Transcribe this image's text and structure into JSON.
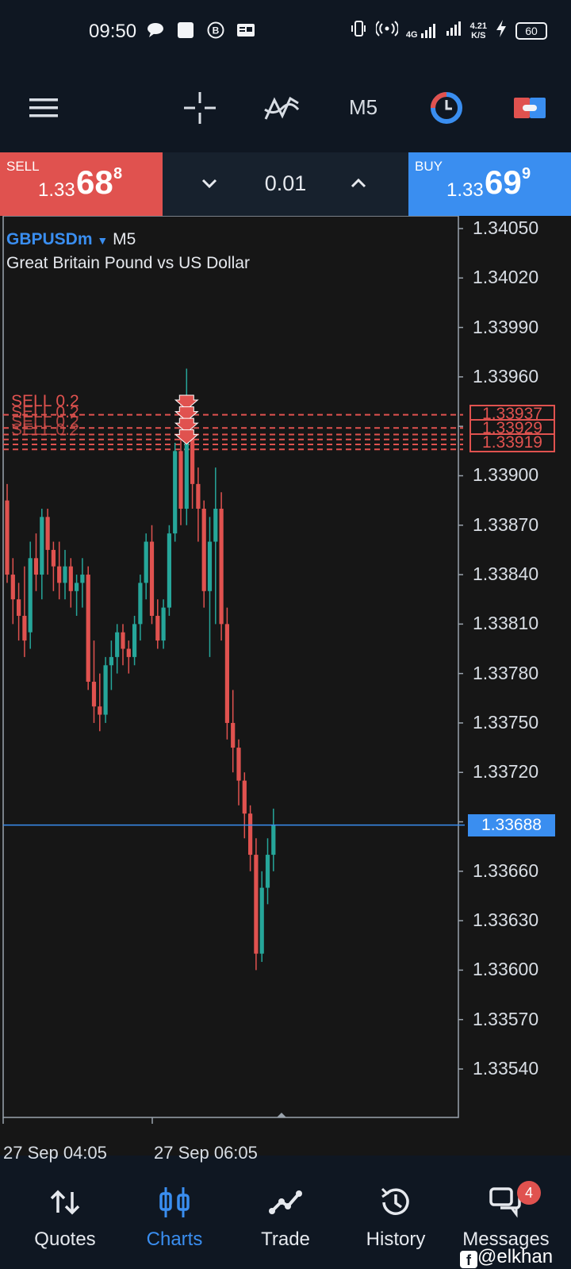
{
  "status_bar": {
    "time": "09:50",
    "net_type": "4G",
    "speed": "4.21",
    "speed_unit": "K/S",
    "battery": "60"
  },
  "toolbar": {
    "timeframe": "M5",
    "icons": [
      "menu-icon",
      "crosshair-icon",
      "indicators-icon",
      "timeframe-button",
      "clock-icon",
      "trade-toggle-icon"
    ]
  },
  "trade": {
    "sell_label": "SELL",
    "sell_price_small": "1.33",
    "sell_price_big": "68",
    "sell_price_sup": "8",
    "buy_label": "BUY",
    "buy_price_small": "1.33",
    "buy_price_big": "69",
    "buy_price_sup": "9",
    "volume": "0.01"
  },
  "chart": {
    "symbol": "GBPUSDm",
    "timeframe": "M5",
    "description": "Great Britain Pound vs US Dollar",
    "current_price": "1.33688",
    "position_prices": [
      "1.33937",
      "1.33929",
      "1.33919"
    ],
    "position_label": "SELL 0.2",
    "time_labels": [
      "27 Sep 04:05",
      "27 Sep 06:05"
    ],
    "colors": {
      "up": "#26a69a",
      "down": "#e0524f",
      "current_line": "#3a8ef0",
      "position": "#e0524f"
    }
  },
  "chart_data": {
    "type": "candlestick",
    "y_axis_labels": [
      "1.34050",
      "1.34020",
      "1.33990",
      "1.33960",
      "1.33930",
      "1.33900",
      "1.33870",
      "1.33840",
      "1.33810",
      "1.33780",
      "1.33750",
      "1.33720",
      "1.33690",
      "1.33660",
      "1.33630",
      "1.33600",
      "1.33570",
      "1.33540"
    ],
    "ylim": [
      1.3352,
      1.3407
    ],
    "x_labels": [
      "27 Sep 04:05",
      "27 Sep 06:05"
    ],
    "candles": [
      {
        "o": 1.33885,
        "h": 1.33895,
        "l": 1.33835,
        "c": 1.3384
      },
      {
        "o": 1.3384,
        "h": 1.3385,
        "l": 1.3381,
        "c": 1.33825
      },
      {
        "o": 1.33825,
        "h": 1.33835,
        "l": 1.338,
        "c": 1.33815
      },
      {
        "o": 1.33815,
        "h": 1.33845,
        "l": 1.3379,
        "c": 1.338
      },
      {
        "o": 1.33805,
        "h": 1.3386,
        "l": 1.33795,
        "c": 1.3385
      },
      {
        "o": 1.3385,
        "h": 1.33865,
        "l": 1.3383,
        "c": 1.3384
      },
      {
        "o": 1.3384,
        "h": 1.3388,
        "l": 1.33825,
        "c": 1.33875
      },
      {
        "o": 1.33875,
        "h": 1.3388,
        "l": 1.3384,
        "c": 1.33855
      },
      {
        "o": 1.33855,
        "h": 1.3386,
        "l": 1.3383,
        "c": 1.33845
      },
      {
        "o": 1.33845,
        "h": 1.3386,
        "l": 1.33825,
        "c": 1.33835
      },
      {
        "o": 1.33835,
        "h": 1.33855,
        "l": 1.33825,
        "c": 1.33845
      },
      {
        "o": 1.33845,
        "h": 1.3385,
        "l": 1.3382,
        "c": 1.3383
      },
      {
        "o": 1.3383,
        "h": 1.3384,
        "l": 1.33815,
        "c": 1.33835
      },
      {
        "o": 1.33835,
        "h": 1.3385,
        "l": 1.3382,
        "c": 1.3384
      },
      {
        "o": 1.3384,
        "h": 1.33845,
        "l": 1.3377,
        "c": 1.33775
      },
      {
        "o": 1.33775,
        "h": 1.338,
        "l": 1.3375,
        "c": 1.3376
      },
      {
        "o": 1.3376,
        "h": 1.3378,
        "l": 1.33745,
        "c": 1.33755
      },
      {
        "o": 1.33755,
        "h": 1.3379,
        "l": 1.3375,
        "c": 1.33785
      },
      {
        "o": 1.33785,
        "h": 1.338,
        "l": 1.3377,
        "c": 1.3379
      },
      {
        "o": 1.3379,
        "h": 1.3381,
        "l": 1.3378,
        "c": 1.33805
      },
      {
        "o": 1.33805,
        "h": 1.3381,
        "l": 1.33785,
        "c": 1.33795
      },
      {
        "o": 1.33795,
        "h": 1.338,
        "l": 1.3378,
        "c": 1.3379
      },
      {
        "o": 1.3379,
        "h": 1.33815,
        "l": 1.33785,
        "c": 1.3381
      },
      {
        "o": 1.3381,
        "h": 1.3384,
        "l": 1.338,
        "c": 1.33835
      },
      {
        "o": 1.33835,
        "h": 1.33865,
        "l": 1.33825,
        "c": 1.3386
      },
      {
        "o": 1.3386,
        "h": 1.3387,
        "l": 1.3381,
        "c": 1.33815
      },
      {
        "o": 1.33815,
        "h": 1.33825,
        "l": 1.33795,
        "c": 1.338
      },
      {
        "o": 1.338,
        "h": 1.33825,
        "l": 1.33795,
        "c": 1.3382
      },
      {
        "o": 1.3382,
        "h": 1.3387,
        "l": 1.33815,
        "c": 1.33865
      },
      {
        "o": 1.33865,
        "h": 1.3392,
        "l": 1.3386,
        "c": 1.33915
      },
      {
        "o": 1.33915,
        "h": 1.33945,
        "l": 1.3387,
        "c": 1.3388
      },
      {
        "o": 1.3388,
        "h": 1.33965,
        "l": 1.3387,
        "c": 1.33925
      },
      {
        "o": 1.33925,
        "h": 1.33935,
        "l": 1.3388,
        "c": 1.33895
      },
      {
        "o": 1.33895,
        "h": 1.33905,
        "l": 1.3386,
        "c": 1.3388
      },
      {
        "o": 1.3388,
        "h": 1.33885,
        "l": 1.3382,
        "c": 1.3383
      },
      {
        "o": 1.3383,
        "h": 1.33875,
        "l": 1.3379,
        "c": 1.3386
      },
      {
        "o": 1.3386,
        "h": 1.33905,
        "l": 1.3381,
        "c": 1.3388
      },
      {
        "o": 1.3388,
        "h": 1.3389,
        "l": 1.338,
        "c": 1.3381
      },
      {
        "o": 1.3381,
        "h": 1.3382,
        "l": 1.3374,
        "c": 1.3375
      },
      {
        "o": 1.3375,
        "h": 1.3377,
        "l": 1.3372,
        "c": 1.33735
      },
      {
        "o": 1.33735,
        "h": 1.3374,
        "l": 1.337,
        "c": 1.33715
      },
      {
        "o": 1.33715,
        "h": 1.3372,
        "l": 1.3368,
        "c": 1.33695
      },
      {
        "o": 1.33695,
        "h": 1.337,
        "l": 1.3366,
        "c": 1.3367
      },
      {
        "o": 1.3367,
        "h": 1.3368,
        "l": 1.336,
        "c": 1.3361
      },
      {
        "o": 1.3361,
        "h": 1.3366,
        "l": 1.33605,
        "c": 1.3365
      },
      {
        "o": 1.3365,
        "h": 1.3368,
        "l": 1.3364,
        "c": 1.3367
      },
      {
        "o": 1.3367,
        "h": 1.33698,
        "l": 1.3366,
        "c": 1.33688
      }
    ]
  },
  "nav": {
    "items": [
      {
        "label": "Quotes",
        "icon": "quotes-icon"
      },
      {
        "label": "Charts",
        "icon": "charts-icon"
      },
      {
        "label": "Trade",
        "icon": "trade-icon"
      },
      {
        "label": "History",
        "icon": "history-icon"
      },
      {
        "label": "Messages",
        "icon": "messages-icon"
      }
    ],
    "active": "Charts",
    "messages_badge": "4"
  },
  "watermark": "@elkhan"
}
